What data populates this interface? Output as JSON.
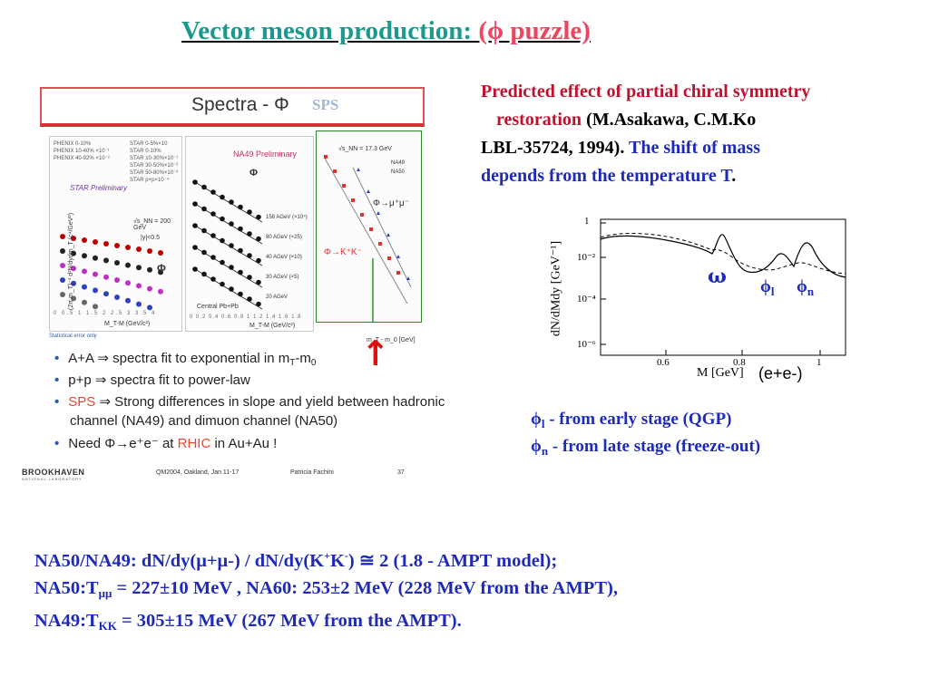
{
  "title": {
    "part1": "Vector meson production:  ",
    "part2": "(ϕ puzzle)"
  },
  "prediction": {
    "line1": "Predicted effect of partial chiral symmetry",
    "line2a": "restoration",
    "line2b": " (M.Asakawa, C.M.Ko",
    "line3a": "LBL-35724, 1994).",
    "line3b": " The shift of mass",
    "line4a": "depends from the temperature T",
    "line4b": "."
  },
  "embedded_slide": {
    "header": "Spectra - Φ",
    "sps_label": "SPS",
    "panel1": {
      "legend_left": [
        "PHENIX 0-10%",
        "PHENIX 10-40% ×10⁻¹",
        "PHENIX 40-92% ×10⁻²"
      ],
      "legend_right": [
        "STAR 0-5%×10",
        "STAR 0-10%",
        "STAR 10-30%×10⁻¹",
        "STAR 30-50%×10⁻²",
        "STAR 50-80%×10⁻³",
        "STAR p+p×10⁻⁴"
      ],
      "star_label": "STAR Preliminary",
      "energy": "√s_NN = 200 GeV",
      "rapidity": "|y|<0.5",
      "phi": "Φ",
      "xlabel": "M_T-M (GeV/c²)",
      "ylabel": "(2π m_T)⁻¹ d²N/dydm_T (c⁴/GeV²)",
      "note": "Statistical error only"
    },
    "panel2": {
      "label": "NA49 Preliminary",
      "phi": "Φ",
      "energies": [
        "158 AGeV (×10⁴)",
        "80 AGeV (×25)",
        "40 AGeV (×10)",
        "30 AGeV (×5)",
        "20 AGeV"
      ],
      "system": "Central Pb+Pb",
      "xlabel": "M_T-M (GeV/c²)"
    },
    "panel3": {
      "energy": "√s_NN = 17.3 GeV",
      "legend": [
        "NA49",
        "NA50"
      ],
      "mumu": "Φ→μ⁺μ⁻",
      "kk": "Φ→K⁺K⁻",
      "xlabel": "m_T - m_0 [GeV]"
    },
    "bullets": [
      {
        "pre": "A+A ⇒ spectra fit to exponential in m",
        "sub": "T",
        "post": "-m",
        "sub2": "0"
      },
      {
        "pre": "p+p ⇒ spectra fit to power-law"
      },
      {
        "pre": "SPS",
        "post": " ⇒ Strong differences in slope and yield between hadronic"
      },
      {
        "pre": "channel (NA49) and dimuon channel (NA50)"
      },
      {
        "pre": "Need Φ→e⁺e⁻ at ",
        "red": "RHIC",
        "post": " in Au+Au !"
      }
    ],
    "footer": {
      "lab": "BROOKHAVEN",
      "lab_sub": "NATIONAL LABORATORY",
      "conf": "QM2004, Oakland, Jan 11-17",
      "author": "Patricia Fachini",
      "page": "37"
    }
  },
  "arrow_glyph": "↑",
  "mass_plot": {
    "ylabel": "dN/dMdy [GeV⁻¹]",
    "xlabel": "M [GeV]",
    "yticks": [
      "1",
      "10⁻²",
      "10⁻⁴",
      "10⁻⁶"
    ],
    "xticks": [
      "0.6",
      "0.8",
      "1"
    ],
    "omega": "ω",
    "phi_l": "ϕ",
    "phi_l_sub": "l",
    "phi_n": "ϕ",
    "phi_n_sub": "n",
    "channel": "(e+e-)"
  },
  "phi_notes": [
    {
      "sym": "ϕ",
      "sub": "l",
      "text": "  - from early stage  (QGP)"
    },
    {
      "sym": "ϕ",
      "sub": "n",
      "text": " - from late stage (freeze-out)"
    }
  ],
  "bottom": {
    "l1a": "NA50/NA49:    dN/dy(μ+μ-) / dN/dy(K",
    "l1sup1": "+",
    "l1b": "K",
    "l1sup2": "-",
    "l1c": ") ≅ 2 (1.8 - AMPT model);",
    "l2a": "NA50:T",
    "l2sub": "μμ",
    "l2b": " = 227±10 MeV , NA60: 253±2 MeV  (228 MeV from the AMPT),",
    "l3a": "NA49:T",
    "l3sub": "KK",
    "l3b": " = 305±15 MeV (267 MeV from the AMPT)."
  }
}
